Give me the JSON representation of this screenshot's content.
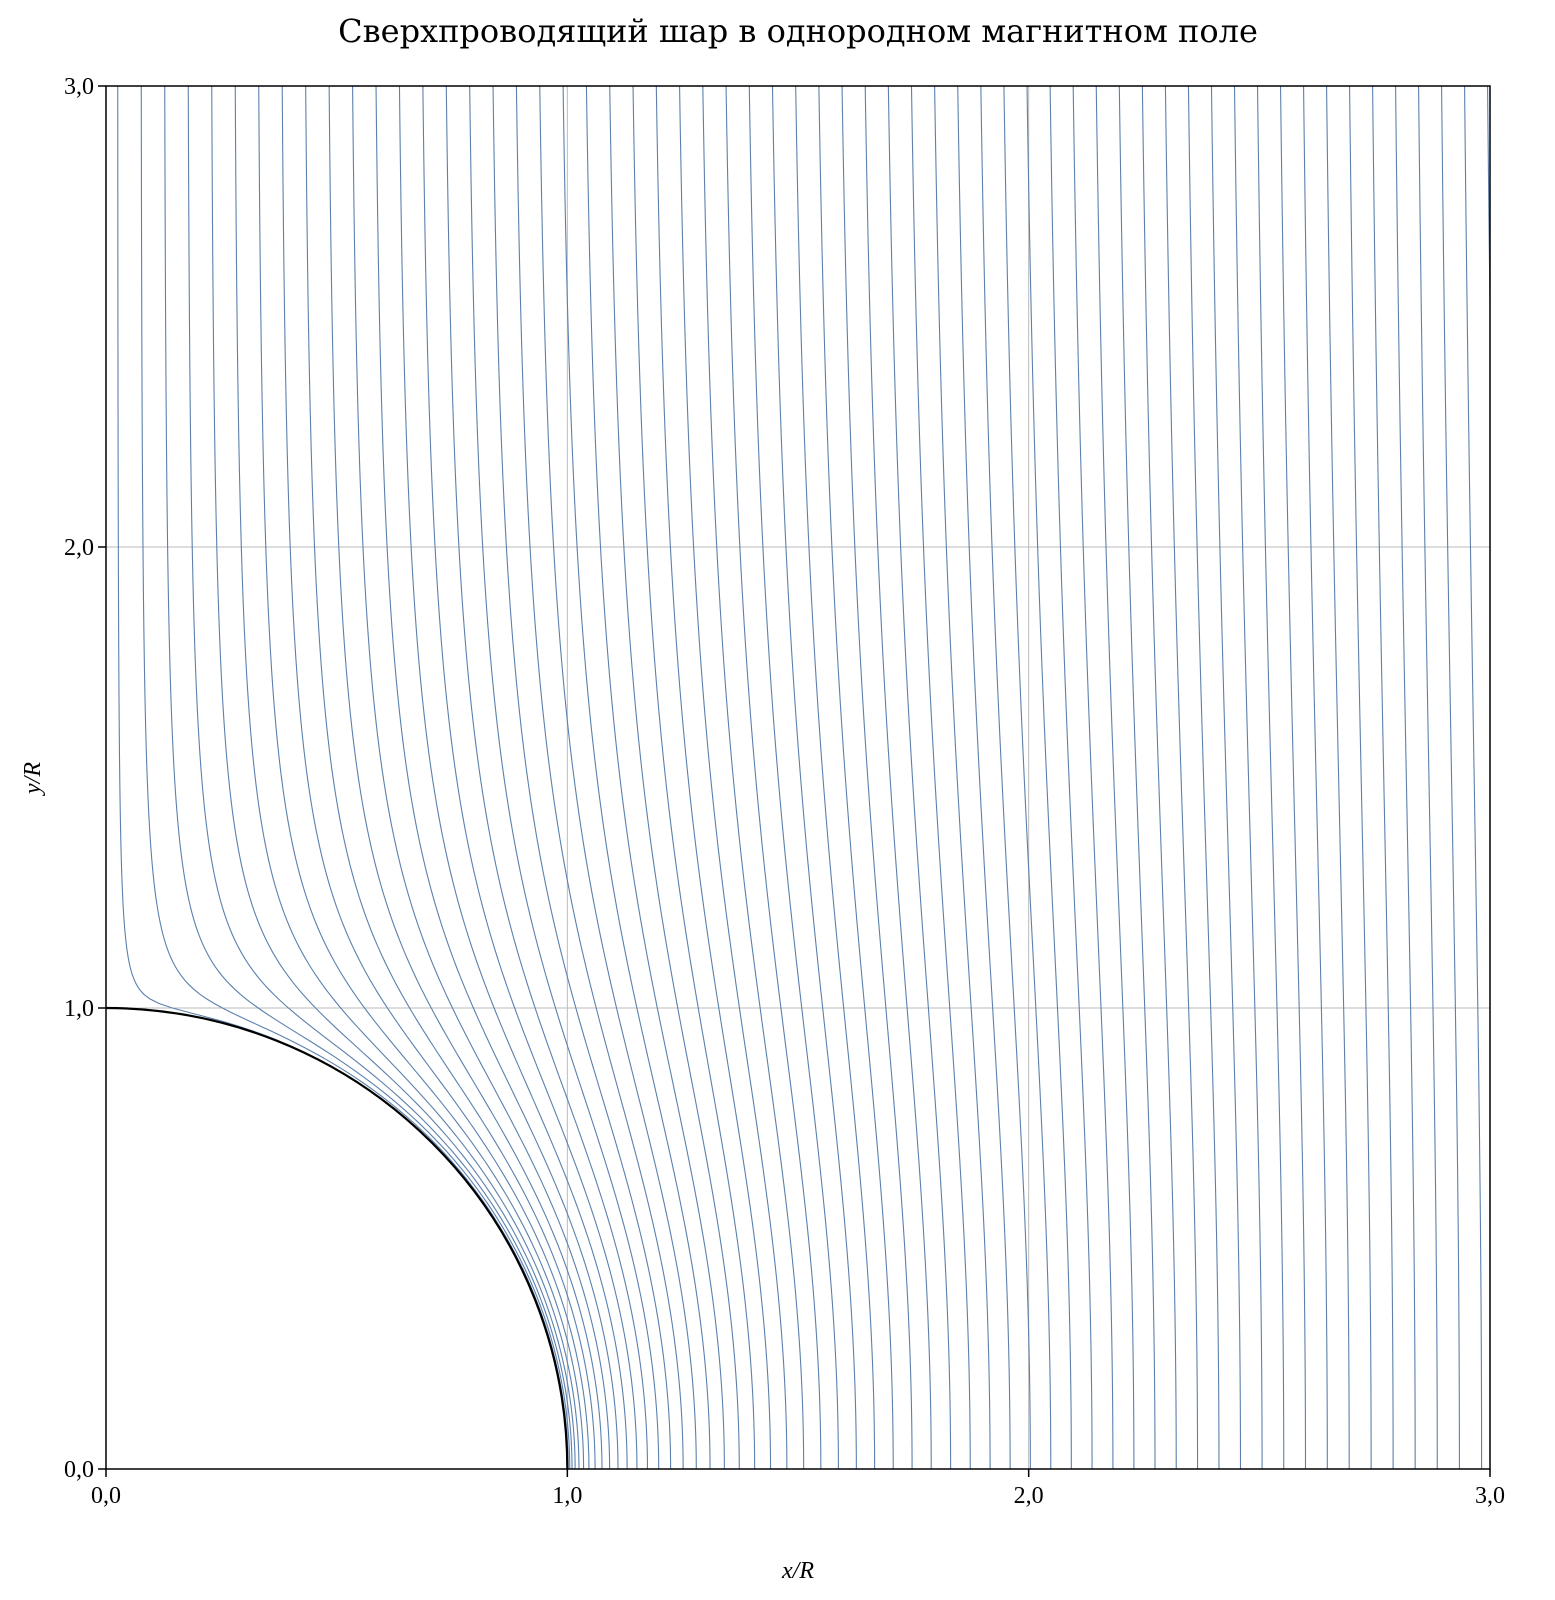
{
  "chart_data": {
    "type": "field-lines",
    "title": "Сверхпроводящий шар в однородном магнитном поле",
    "xlabel": "x/R",
    "ylabel": "y/R",
    "xlim": [
      0,
      3
    ],
    "ylim": [
      0,
      3
    ],
    "xticks": [
      {
        "value": 0,
        "label": "0,0"
      },
      {
        "value": 1,
        "label": "1,0"
      },
      {
        "value": 2,
        "label": "2,0"
      },
      {
        "value": 3,
        "label": "3,0"
      }
    ],
    "yticks": [
      {
        "value": 0,
        "label": "0,0"
      },
      {
        "value": 1,
        "label": "1,0"
      },
      {
        "value": 2,
        "label": "2,0"
      },
      {
        "value": 3,
        "label": "3,0"
      }
    ],
    "grid": true,
    "sphere_radius": 1,
    "sphere_color": "#000000",
    "color": "#5b80ad",
    "field_lines": [
      0.025,
      0.075,
      0.125,
      0.175,
      0.225,
      0.275,
      0.325,
      0.375,
      0.425,
      0.475,
      0.525,
      0.575,
      0.625,
      0.675,
      0.725,
      0.775,
      0.825,
      0.875,
      0.925,
      0.975,
      1.025,
      1.075,
      1.125,
      1.175,
      1.225,
      1.275,
      1.325,
      1.375,
      1.425,
      1.475,
      1.525,
      1.575,
      1.625,
      1.675,
      1.725,
      1.775,
      1.825,
      1.875,
      1.925,
      1.975,
      2.025,
      2.075,
      2.125,
      2.175,
      2.225,
      2.275,
      2.325,
      2.375,
      2.425,
      2.475,
      2.525,
      2.575,
      2.625,
      2.675,
      2.725,
      2.775,
      2.825,
      2.875,
      2.925,
      2.975
    ]
  }
}
